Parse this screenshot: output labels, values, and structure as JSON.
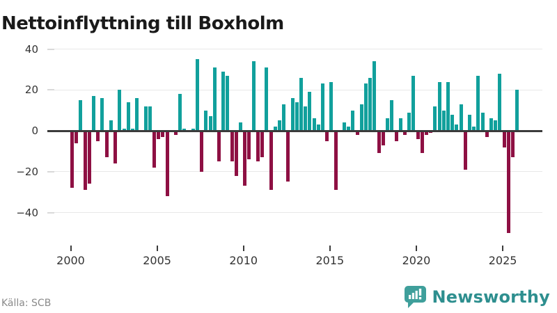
{
  "title": "Nettoinflyttning till Boxholm",
  "source": "Källa: SCB",
  "branding": {
    "name": "Newsworthy",
    "icon": "newsworthy-speech-bubble-chart-icon",
    "icon_color": "#3f9f9b",
    "text_color": "#2e8f8f"
  },
  "chart_data": {
    "type": "bar",
    "title": "Nettoinflyttning till Boxholm",
    "frequency": "quarterly",
    "start_period": "2000-Q1",
    "end_period": "2025-Q4",
    "xlabel": "",
    "ylabel": "",
    "x_tick_labels": [
      "2000",
      "2005",
      "2010",
      "2015",
      "2020",
      "2025"
    ],
    "x_tick_quarter_index": [
      0,
      20,
      40,
      60,
      80,
      100
    ],
    "y_ticks": [
      40,
      20,
      0,
      -20,
      -40
    ],
    "y_tick_labels": [
      "40",
      "20",
      "0",
      "−20",
      "−40"
    ],
    "ylim": [
      -52,
      42
    ],
    "grid": "horizontal",
    "legend": "none",
    "colors": {
      "positive": "#11a09c",
      "negative": "#8e1043",
      "zero_line": "#3b3b3b",
      "grid": "#e8e8e8",
      "axis_text": "#333333"
    },
    "series": [
      {
        "name": "Nettoinflyttning per kvartal",
        "values": [
          -28,
          -6,
          15,
          -29,
          -26,
          17,
          -5,
          16,
          -13,
          5,
          -16,
          20,
          1,
          14,
          1,
          16,
          0,
          12,
          12,
          -18,
          -4,
          -3,
          -32,
          0,
          -2,
          18,
          1,
          0,
          1,
          35,
          -20,
          10,
          7,
          31,
          -15,
          29,
          27,
          -15,
          -22,
          4,
          -27,
          -14,
          34,
          -15,
          -13,
          31,
          -29,
          2,
          5,
          13,
          -25,
          16,
          14,
          26,
          12,
          19,
          6,
          3,
          23,
          -5,
          24,
          -29,
          0,
          4,
          2,
          10,
          -2,
          13,
          23,
          26,
          34,
          -11,
          -7,
          6,
          15,
          -5,
          6,
          -2,
          9,
          27,
          -4,
          -11,
          -2,
          -1,
          12,
          24,
          10,
          24,
          8,
          3,
          13,
          -19,
          8,
          2,
          27,
          9,
          -3,
          6,
          5,
          28,
          -8,
          -50,
          -13,
          20
        ]
      }
    ]
  }
}
